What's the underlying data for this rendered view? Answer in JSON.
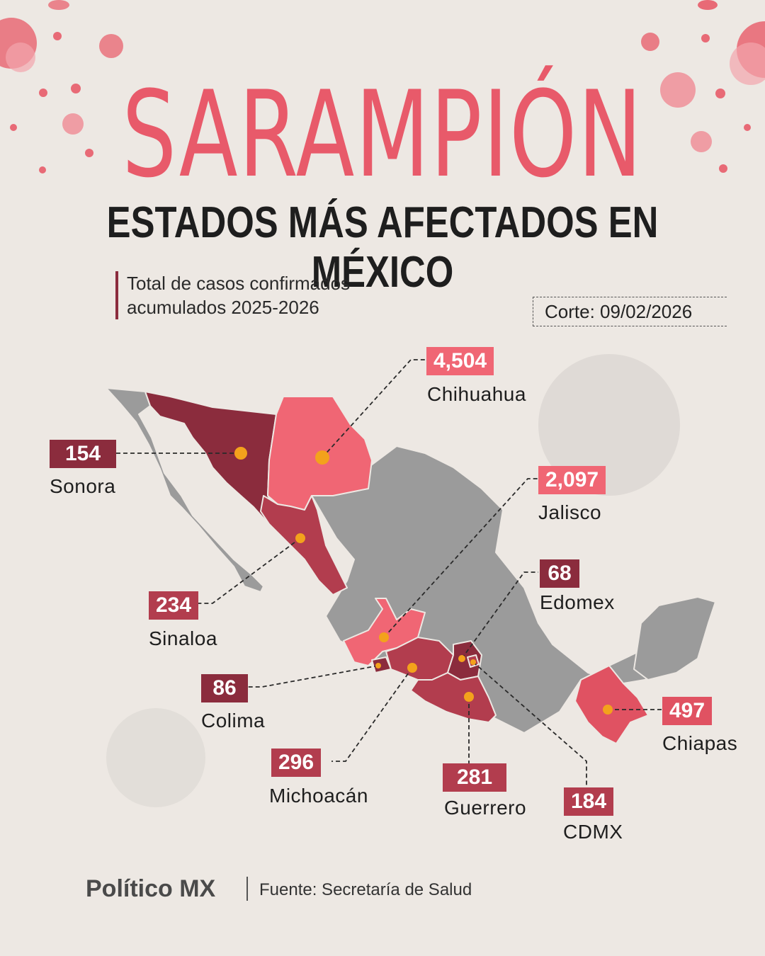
{
  "header": {
    "title": "SARAMPIÓN",
    "subtitle": "ESTADOS MÁS AFECTADOS EN MÉXICO"
  },
  "description": {
    "line1": "Total de casos confirmados",
    "line2": "acumulados 2025-2026"
  },
  "cutoff": "Corte: 09/02/2026",
  "colors": {
    "highest": "#f06674",
    "high": "#e05262",
    "mid": "#b23d4e",
    "low": "#8b2c3d",
    "base_state": "#9b9b9b",
    "marker": "#f3a21c",
    "title": "#e85a6a"
  },
  "states": [
    {
      "id": "chihuahua",
      "name": "Chihuahua",
      "cases": "4,504",
      "color": "#f06674"
    },
    {
      "id": "jalisco",
      "name": "Jalisco",
      "cases": "2,097",
      "color": "#f06674"
    },
    {
      "id": "chiapas",
      "name": "Chiapas",
      "cases": "497",
      "color": "#e05262"
    },
    {
      "id": "michoacan",
      "name": "Michoacán",
      "cases": "296",
      "color": "#b23d4e"
    },
    {
      "id": "guerrero",
      "name": "Guerrero",
      "cases": "281",
      "color": "#b23d4e"
    },
    {
      "id": "sinaloa",
      "name": "Sinaloa",
      "cases": "234",
      "color": "#b23d4e"
    },
    {
      "id": "cdmx",
      "name": "CDMX",
      "cases": "184",
      "color": "#b23d4e"
    },
    {
      "id": "sonora",
      "name": "Sonora",
      "cases": "154",
      "color": "#8b2c3d"
    },
    {
      "id": "colima",
      "name": "Colima",
      "cases": "86",
      "color": "#8b2c3d"
    },
    {
      "id": "edomex",
      "name": "Edomex",
      "cases": "68",
      "color": "#8b2c3d"
    }
  ],
  "footer": {
    "brand": "Político MX",
    "source": "Fuente: Secretaría de Salud"
  }
}
